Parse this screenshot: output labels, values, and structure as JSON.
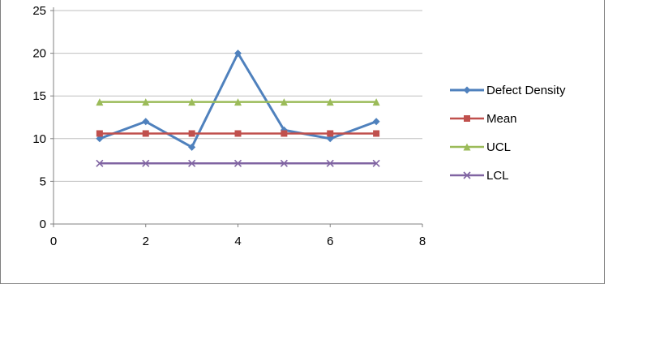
{
  "chart_data": {
    "type": "line",
    "title": "",
    "xlabel": "",
    "ylabel": "",
    "x": [
      1,
      2,
      3,
      4,
      5,
      6,
      7
    ],
    "series": [
      {
        "name": "Defect Density",
        "color": "#4F81BD",
        "marker": "diamond",
        "values": [
          10,
          12,
          9,
          20,
          11,
          10,
          12
        ]
      },
      {
        "name": "Mean",
        "color": "#C0504D",
        "marker": "square",
        "values": [
          10.6,
          10.6,
          10.6,
          10.6,
          10.6,
          10.6,
          10.6
        ]
      },
      {
        "name": "UCL",
        "color": "#9BBB59",
        "marker": "triangle",
        "values": [
          14.3,
          14.3,
          14.3,
          14.3,
          14.3,
          14.3,
          14.3
        ]
      },
      {
        "name": "LCL",
        "color": "#8064A2",
        "marker": "x",
        "values": [
          7.1,
          7.1,
          7.1,
          7.1,
          7.1,
          7.1,
          7.1
        ]
      }
    ],
    "xlim": [
      0,
      8
    ],
    "ylim": [
      0,
      25
    ],
    "x_ticks": [
      0,
      2,
      4,
      6,
      8
    ],
    "y_ticks": [
      0,
      5,
      10,
      15,
      20,
      25
    ],
    "grid": true,
    "legend_position": "right",
    "colors": {
      "gridline": "#bfbfbf",
      "axis": "#808080",
      "frame_border": "#7f7f7f"
    }
  }
}
